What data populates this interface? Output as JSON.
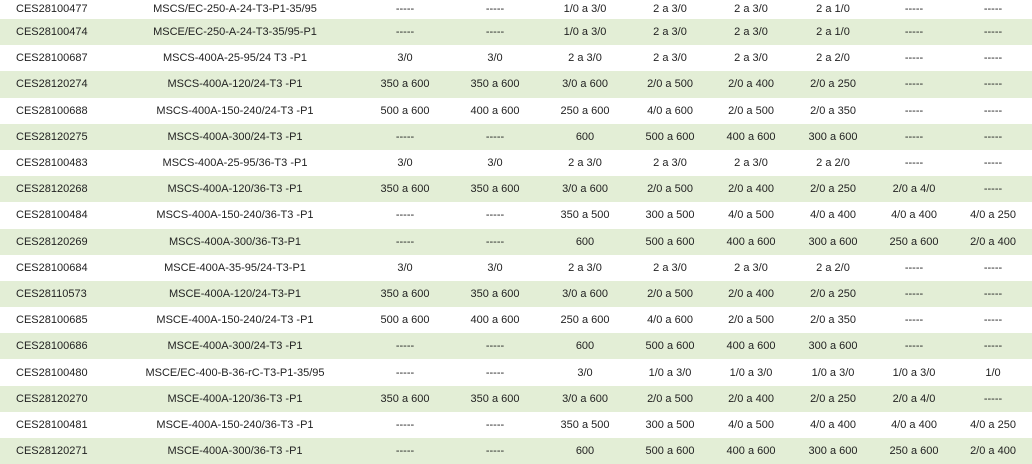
{
  "rows": [
    {
      "code": "CES28100477",
      "model": "MSCS/EC-250-A-24-T3-P1-35/95",
      "c1": "-----",
      "c2": "-----",
      "c3": "1/0 a 3/0",
      "c4": "2 a 3/0",
      "c5": "2 a 3/0",
      "c6": "2 a 1/0",
      "c7": "-----",
      "c8": "-----"
    },
    {
      "code": "CES28100474",
      "model": "MSCE/EC-250-A-24-T3-35/95-P1",
      "c1": "-----",
      "c2": "-----",
      "c3": "1/0 a 3/0",
      "c4": "2 a 3/0",
      "c5": "2 a 3/0",
      "c6": "2 a 1/0",
      "c7": "-----",
      "c8": "-----"
    },
    {
      "code": "CES28100687",
      "model": "MSCS-400A-25-95/24 T3 -P1",
      "c1": "3/0",
      "c2": "3/0",
      "c3": "2 a 3/0",
      "c4": "2 a 3/0",
      "c5": "2 a 3/0",
      "c6": "2 a 2/0",
      "c7": "-----",
      "c8": "-----"
    },
    {
      "code": "CES28120274",
      "model": "MSCS-400A-120/24-T3 -P1",
      "c1": "350 a 600",
      "c2": "350 a 600",
      "c3": "3/0 a 600",
      "c4": "2/0 a 500",
      "c5": "2/0 a 400",
      "c6": "2/0 a 250",
      "c7": "-----",
      "c8": "-----"
    },
    {
      "code": "CES28100688",
      "model": "MSCS-400A-150-240/24-T3 -P1",
      "c1": "500 a 600",
      "c2": "400 a 600",
      "c3": "250 a 600",
      "c4": "4/0 a 600",
      "c5": "2/0 a 500",
      "c6": "2/0 a 350",
      "c7": "-----",
      "c8": "-----"
    },
    {
      "code": "CES28120275",
      "model": "MSCS-400A-300/24-T3 -P1",
      "c1": "-----",
      "c2": "-----",
      "c3": "600",
      "c4": "500 a 600",
      "c5": "400 a 600",
      "c6": "300 a 600",
      "c7": "-----",
      "c8": "-----"
    },
    {
      "code": "CES28100483",
      "model": "MSCS-400A-25-95/36-T3 -P1",
      "c1": "3/0",
      "c2": "3/0",
      "c3": "2 a 3/0",
      "c4": "2 a 3/0",
      "c5": "2 a 3/0",
      "c6": "2 a 2/0",
      "c7": "-----",
      "c8": "-----"
    },
    {
      "code": "CES28120268",
      "model": "MSCS-400A-120/36-T3 -P1",
      "c1": "350 a 600",
      "c2": "350 a 600",
      "c3": "3/0 a 600",
      "c4": "2/0 a 500",
      "c5": "2/0 a 400",
      "c6": "2/0 a 250",
      "c7": "2/0 a 4/0",
      "c8": "-----"
    },
    {
      "code": "CES28100484",
      "model": "MSCS-400A-150-240/36-T3 -P1",
      "c1": "-----",
      "c2": "-----",
      "c3": "350 a 500",
      "c4": "300 a 500",
      "c5": "4/0 a 500",
      "c6": "4/0 a 400",
      "c7": "4/0 a 400",
      "c8": "4/0 a 250"
    },
    {
      "code": "CES28120269",
      "model": "MSCS-400A-300/36-T3-P1",
      "c1": "-----",
      "c2": "-----",
      "c3": "600",
      "c4": "500 a 600",
      "c5": "400 a 600",
      "c6": "300 a 600",
      "c7": "250 a 600",
      "c8": "2/0 a 400"
    },
    {
      "code": "CES28100684",
      "model": "MSCE-400A-35-95/24-T3-P1",
      "c1": "3/0",
      "c2": "3/0",
      "c3": "2 a 3/0",
      "c4": "2 a 3/0",
      "c5": "2 a 3/0",
      "c6": "2 a 2/0",
      "c7": "-----",
      "c8": "-----"
    },
    {
      "code": "CES28110573",
      "model": "MSCE-400A-120/24-T3-P1",
      "c1": "350 a 600",
      "c2": "350 a 600",
      "c3": "3/0 a 600",
      "c4": "2/0 a 500",
      "c5": "2/0 a 400",
      "c6": "2/0 a 250",
      "c7": "-----",
      "c8": "-----"
    },
    {
      "code": "CES28100685",
      "model": "MSCE-400A-150-240/24-T3 -P1",
      "c1": "500 a 600",
      "c2": "400 a 600",
      "c3": "250 a 600",
      "c4": "4/0 a 600",
      "c5": "2/0 a 500",
      "c6": "2/0 a 350",
      "c7": "-----",
      "c8": "-----"
    },
    {
      "code": "CES28100686",
      "model": "MSCE-400A-300/24-T3 -P1",
      "c1": "-----",
      "c2": "-----",
      "c3": "600",
      "c4": "500 a 600",
      "c5": "400 a 600",
      "c6": "300 a 600",
      "c7": "-----",
      "c8": "-----"
    },
    {
      "code": "CES28100480",
      "model": "MSCE/EC-400-B-36-rC-T3-P1-35/95",
      "c1": "-----",
      "c2": "-----",
      "c3": "3/0",
      "c4": "1/0 a 3/0",
      "c5": "1/0 a 3/0",
      "c6": "1/0 a 3/0",
      "c7": "1/0 a 3/0",
      "c8": "1/0"
    },
    {
      "code": "CES28120270",
      "model": "MSCE-400A-120/36-T3 -P1",
      "c1": "350 a 600",
      "c2": "350 a 600",
      "c3": "3/0 a 600",
      "c4": "2/0 a 500",
      "c5": "2/0 a 400",
      "c6": "2/0 a 250",
      "c7": "2/0 a 4/0",
      "c8": "-----"
    },
    {
      "code": "CES28100481",
      "model": "MSCE-400A-150-240/36-T3 -P1",
      "c1": "-----",
      "c2": "-----",
      "c3": "350 a 500",
      "c4": "300 a 500",
      "c5": "4/0 a 500",
      "c6": "4/0 a 400",
      "c7": "4/0 a 400",
      "c8": "4/0 a 250"
    },
    {
      "code": "CES28120271",
      "model": "MSCE-400A-300/36-T3 -P1",
      "c1": "-----",
      "c2": "-----",
      "c3": "600",
      "c4": "500 a 600",
      "c5": "400 a 600",
      "c6": "300 a 600",
      "c7": "250 a 600",
      "c8": "2/0 a 400"
    }
  ],
  "colors": {
    "shade": "#e3eed6",
    "plain": "#ffffff"
  }
}
